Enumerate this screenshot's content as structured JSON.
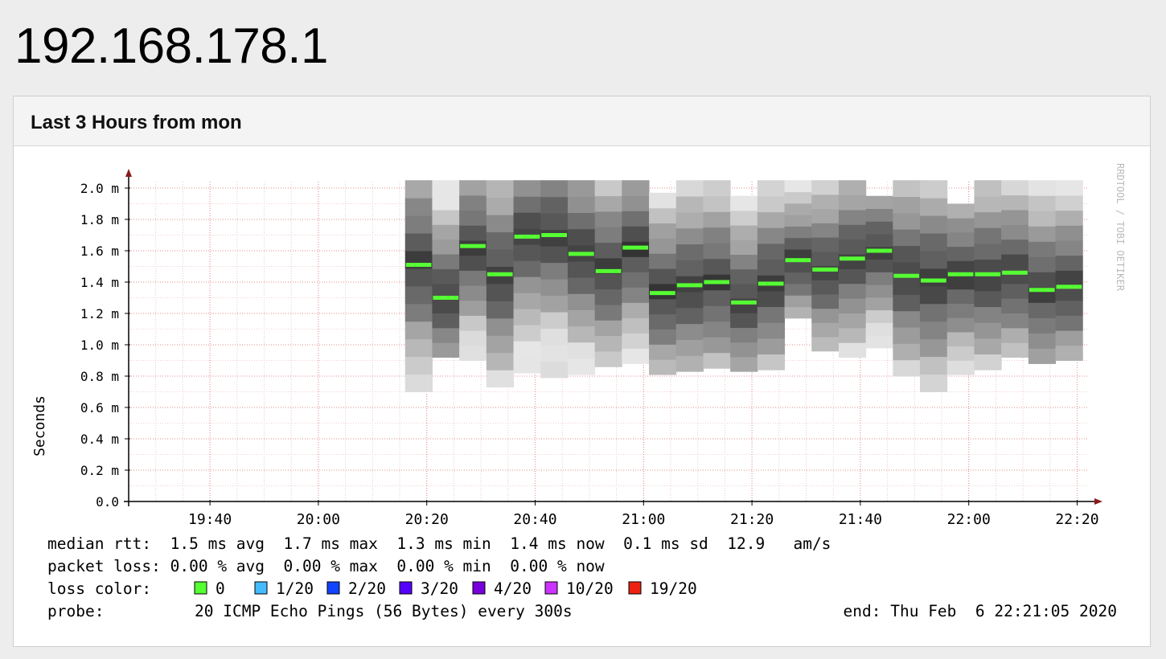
{
  "page": {
    "host": "192.168.178.1"
  },
  "panel": {
    "title": "Last 3 Hours from mon"
  },
  "chart_data": {
    "type": "bar",
    "title": "",
    "ylabel": "Seconds",
    "watermark": "RRDTOOL / TOBI OETIKER",
    "ylim": [
      0,
      2.0
    ],
    "y_ticks": [
      0,
      0.2,
      0.4,
      0.6,
      0.8,
      1.0,
      1.2,
      1.4,
      1.6,
      1.8,
      2.0
    ],
    "y_tick_labels": [
      "0.0",
      "0.2 m",
      "0.4 m",
      "0.6 m",
      "0.8 m",
      "1.0 m",
      "1.2 m",
      "1.4 m",
      "1.6 m",
      "1.8 m",
      "2.0 m"
    ],
    "x_range_minutes": [
      1165,
      1342
    ],
    "x_ticks_minutes": [
      1180,
      1200,
      1220,
      1240,
      1260,
      1280,
      1300,
      1320,
      1340
    ],
    "x_tick_labels": [
      "19:40",
      "20:00",
      "20:20",
      "20:40",
      "21:00",
      "21:20",
      "21:40",
      "22:00",
      "22:20"
    ],
    "grid": true,
    "median_color": "#55ff33",
    "intervals": {
      "start_minutes": [
        1216,
        1221,
        1226,
        1231,
        1236,
        1241,
        1246,
        1251,
        1256,
        1261,
        1266,
        1271,
        1276,
        1281,
        1286,
        1291,
        1296,
        1301,
        1306,
        1311,
        1316,
        1321,
        1326,
        1331,
        1336
      ],
      "end_minutes": [
        1221,
        1226,
        1231,
        1236,
        1241,
        1246,
        1251,
        1256,
        1261,
        1266,
        1271,
        1276,
        1281,
        1286,
        1291,
        1296,
        1301,
        1306,
        1311,
        1316,
        1321,
        1326,
        1331,
        1336,
        1341
      ],
      "median": [
        1.51,
        1.3,
        1.63,
        1.45,
        1.69,
        1.7,
        1.58,
        1.47,
        1.62,
        1.33,
        1.38,
        1.4,
        1.27,
        1.39,
        1.54,
        1.48,
        1.55,
        1.6,
        1.44,
        1.41,
        1.45,
        1.45,
        1.46,
        1.35,
        1.37
      ],
      "min": [
        0.7,
        0.92,
        0.9,
        0.73,
        0.82,
        0.79,
        0.81,
        0.86,
        0.88,
        0.81,
        0.83,
        0.85,
        0.83,
        0.84,
        1.17,
        0.96,
        0.92,
        0.98,
        0.8,
        0.7,
        0.81,
        0.84,
        0.92,
        0.88,
        0.9
      ],
      "max": [
        2.05,
        2.05,
        2.05,
        2.05,
        2.05,
        2.05,
        2.05,
        2.05,
        2.05,
        1.97,
        2.05,
        2.05,
        1.95,
        2.05,
        2.05,
        2.05,
        2.05,
        1.95,
        2.05,
        2.05,
        1.9,
        2.05,
        2.05,
        2.05,
        2.05
      ]
    }
  },
  "stats": {
    "rows": [
      "median rtt:  1.5 ms avg  1.7 ms max  1.3 ms min  1.4 ms now  0.1 ms sd  12.9   am/s",
      "packet loss: 0.00 % avg  0.00 % max  0.00 % min  0.00 % now"
    ],
    "loss_label": "loss color:",
    "loss_items": [
      {
        "label": "0",
        "color": "#55ff33"
      },
      {
        "label": "1/20",
        "color": "#44bbff"
      },
      {
        "label": "2/20",
        "color": "#1144ff"
      },
      {
        "label": "3/20",
        "color": "#5500ff"
      },
      {
        "label": "4/20",
        "color": "#7700dd"
      },
      {
        "label": "10/20",
        "color": "#cc33ff"
      },
      {
        "label": "19/20",
        "color": "#ee2211"
      }
    ],
    "probe_label": "probe:",
    "probe_text": "20 ICMP Echo Pings (56 Bytes) every 300s",
    "end_text": "end: Thu Feb  6 22:21:05 2020"
  }
}
